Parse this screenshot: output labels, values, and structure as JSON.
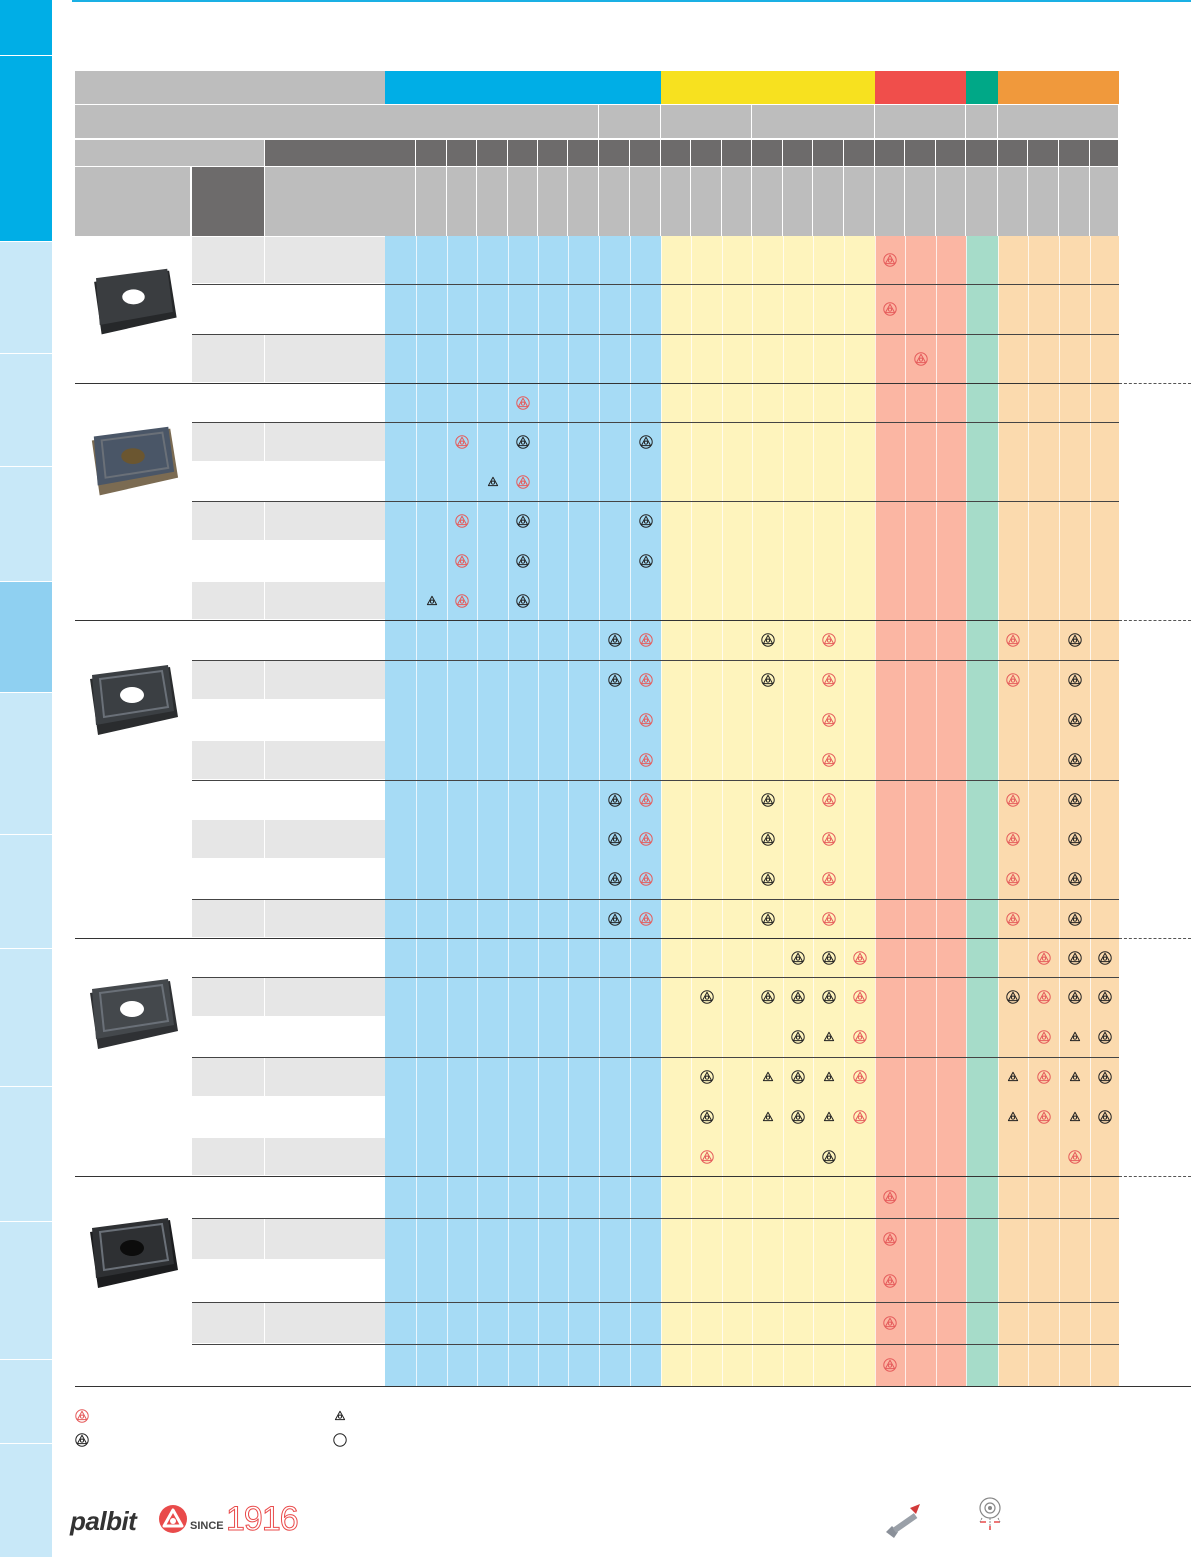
{
  "colors": {
    "p_blue": "#00aee6",
    "m_yellow": "#f7e11f",
    "k_red": "#f04e4b",
    "n_green": "#00a887",
    "s_orange": "#f0993c",
    "header_gray": "#bdbdbd",
    "header_dark": "#6d6b6b",
    "sym_red": "#e55b5b",
    "sym_black": "#222222"
  },
  "sidebar": {
    "tabs": [
      {
        "color": "#00aee6"
      },
      {
        "color": "#00aee6"
      },
      {
        "color": "#c8e8f8"
      },
      {
        "color": "#c8e8f8"
      },
      {
        "color": "#c8e8f8"
      },
      {
        "color": "#8fd0f1"
      },
      {
        "color": "#c8e8f8"
      },
      {
        "color": "#c8e8f8"
      },
      {
        "color": "#c8e8f8"
      },
      {
        "color": "#c8e8f8"
      },
      {
        "color": "#c8e8f8"
      },
      {
        "color": "#c8e8f8"
      },
      {
        "color": "#c8e8f8"
      }
    ]
  },
  "groups": [
    {
      "icon": "insert-plain-hole-icon",
      "rows": [
        "g",
        "w",
        "g"
      ]
    },
    {
      "icon": "insert-chipbreaker-coated-icon",
      "rows": [
        "w",
        "g",
        "w",
        "g",
        "w",
        "g"
      ]
    },
    {
      "icon": "insert-chipbreaker-dark-icon",
      "rows": [
        "w",
        "g",
        "w",
        "g",
        "w",
        "g",
        "w",
        "g"
      ]
    },
    {
      "icon": "insert-chipbreaker-gray-icon",
      "rows": [
        "w",
        "g",
        "w",
        "g",
        "w",
        "g"
      ]
    },
    {
      "icon": "insert-black-hole-icon",
      "rows": [
        "w",
        "g",
        "w",
        "g",
        "w"
      ]
    }
  ],
  "marks": [
    {
      "row": 0,
      "col": 16,
      "t": "r"
    },
    {
      "row": 1,
      "col": 16,
      "t": "r"
    },
    {
      "row": 2,
      "col": 17,
      "t": "r"
    },
    {
      "row": 3,
      "col": 4,
      "t": "r"
    },
    {
      "row": 4,
      "col": 2,
      "t": "r"
    },
    {
      "row": 4,
      "col": 4,
      "t": "b"
    },
    {
      "row": 4,
      "col": 8,
      "t": "b"
    },
    {
      "row": 5,
      "col": 3,
      "t": "o"
    },
    {
      "row": 5,
      "col": 4,
      "t": "r"
    },
    {
      "row": 6,
      "col": 2,
      "t": "r"
    },
    {
      "row": 6,
      "col": 4,
      "t": "b"
    },
    {
      "row": 6,
      "col": 8,
      "t": "b"
    },
    {
      "row": 7,
      "col": 2,
      "t": "r"
    },
    {
      "row": 7,
      "col": 4,
      "t": "b"
    },
    {
      "row": 7,
      "col": 8,
      "t": "b"
    },
    {
      "row": 8,
      "col": 1,
      "t": "o"
    },
    {
      "row": 8,
      "col": 2,
      "t": "r"
    },
    {
      "row": 8,
      "col": 4,
      "t": "b"
    },
    {
      "row": 9,
      "col": 7,
      "t": "b"
    },
    {
      "row": 9,
      "col": 8,
      "t": "r"
    },
    {
      "row": 9,
      "col": 12,
      "t": "b"
    },
    {
      "row": 9,
      "col": 14,
      "t": "r"
    },
    {
      "row": 9,
      "col": 20,
      "t": "r"
    },
    {
      "row": 9,
      "col": 22,
      "t": "b"
    },
    {
      "row": 10,
      "col": 7,
      "t": "b"
    },
    {
      "row": 10,
      "col": 8,
      "t": "r"
    },
    {
      "row": 10,
      "col": 12,
      "t": "b"
    },
    {
      "row": 10,
      "col": 14,
      "t": "r"
    },
    {
      "row": 10,
      "col": 20,
      "t": "r"
    },
    {
      "row": 10,
      "col": 22,
      "t": "b"
    },
    {
      "row": 11,
      "col": 8,
      "t": "r"
    },
    {
      "row": 11,
      "col": 14,
      "t": "r"
    },
    {
      "row": 11,
      "col": 22,
      "t": "b"
    },
    {
      "row": 12,
      "col": 8,
      "t": "r"
    },
    {
      "row": 12,
      "col": 14,
      "t": "r"
    },
    {
      "row": 12,
      "col": 22,
      "t": "b"
    },
    {
      "row": 13,
      "col": 7,
      "t": "b"
    },
    {
      "row": 13,
      "col": 8,
      "t": "r"
    },
    {
      "row": 13,
      "col": 12,
      "t": "b"
    },
    {
      "row": 13,
      "col": 14,
      "t": "r"
    },
    {
      "row": 13,
      "col": 20,
      "t": "r"
    },
    {
      "row": 13,
      "col": 22,
      "t": "b"
    },
    {
      "row": 14,
      "col": 7,
      "t": "b"
    },
    {
      "row": 14,
      "col": 8,
      "t": "r"
    },
    {
      "row": 14,
      "col": 12,
      "t": "b"
    },
    {
      "row": 14,
      "col": 14,
      "t": "r"
    },
    {
      "row": 14,
      "col": 20,
      "t": "r"
    },
    {
      "row": 14,
      "col": 22,
      "t": "b"
    },
    {
      "row": 15,
      "col": 7,
      "t": "b"
    },
    {
      "row": 15,
      "col": 8,
      "t": "r"
    },
    {
      "row": 15,
      "col": 12,
      "t": "b"
    },
    {
      "row": 15,
      "col": 14,
      "t": "r"
    },
    {
      "row": 15,
      "col": 20,
      "t": "r"
    },
    {
      "row": 15,
      "col": 22,
      "t": "b"
    },
    {
      "row": 16,
      "col": 7,
      "t": "b"
    },
    {
      "row": 16,
      "col": 8,
      "t": "r"
    },
    {
      "row": 16,
      "col": 12,
      "t": "b"
    },
    {
      "row": 16,
      "col": 14,
      "t": "r"
    },
    {
      "row": 16,
      "col": 20,
      "t": "r"
    },
    {
      "row": 16,
      "col": 22,
      "t": "b"
    },
    {
      "row": 17,
      "col": 13,
      "t": "b"
    },
    {
      "row": 17,
      "col": 14,
      "t": "b"
    },
    {
      "row": 17,
      "col": 15,
      "t": "r"
    },
    {
      "row": 17,
      "col": 21,
      "t": "r"
    },
    {
      "row": 17,
      "col": 22,
      "t": "b"
    },
    {
      "row": 17,
      "col": 23,
      "t": "b"
    },
    {
      "row": 18,
      "col": 10,
      "t": "b"
    },
    {
      "row": 18,
      "col": 12,
      "t": "b"
    },
    {
      "row": 18,
      "col": 13,
      "t": "b"
    },
    {
      "row": 18,
      "col": 14,
      "t": "b"
    },
    {
      "row": 18,
      "col": 15,
      "t": "r"
    },
    {
      "row": 18,
      "col": 20,
      "t": "b"
    },
    {
      "row": 18,
      "col": 21,
      "t": "r"
    },
    {
      "row": 18,
      "col": 22,
      "t": "b"
    },
    {
      "row": 18,
      "col": 23,
      "t": "b"
    },
    {
      "row": 19,
      "col": 13,
      "t": "b"
    },
    {
      "row": 19,
      "col": 14,
      "t": "o"
    },
    {
      "row": 19,
      "col": 15,
      "t": "r"
    },
    {
      "row": 19,
      "col": 21,
      "t": "r"
    },
    {
      "row": 19,
      "col": 22,
      "t": "o"
    },
    {
      "row": 19,
      "col": 23,
      "t": "b"
    },
    {
      "row": 20,
      "col": 10,
      "t": "b"
    },
    {
      "row": 20,
      "col": 12,
      "t": "o"
    },
    {
      "row": 20,
      "col": 13,
      "t": "b"
    },
    {
      "row": 20,
      "col": 14,
      "t": "o"
    },
    {
      "row": 20,
      "col": 15,
      "t": "r"
    },
    {
      "row": 20,
      "col": 20,
      "t": "o"
    },
    {
      "row": 20,
      "col": 21,
      "t": "r"
    },
    {
      "row": 20,
      "col": 22,
      "t": "o"
    },
    {
      "row": 20,
      "col": 23,
      "t": "b"
    },
    {
      "row": 21,
      "col": 10,
      "t": "b"
    },
    {
      "row": 21,
      "col": 12,
      "t": "o"
    },
    {
      "row": 21,
      "col": 13,
      "t": "b"
    },
    {
      "row": 21,
      "col": 14,
      "t": "o"
    },
    {
      "row": 21,
      "col": 15,
      "t": "r"
    },
    {
      "row": 21,
      "col": 20,
      "t": "o"
    },
    {
      "row": 21,
      "col": 21,
      "t": "r"
    },
    {
      "row": 21,
      "col": 22,
      "t": "o"
    },
    {
      "row": 21,
      "col": 23,
      "t": "b"
    },
    {
      "row": 22,
      "col": 10,
      "t": "r"
    },
    {
      "row": 22,
      "col": 14,
      "t": "b"
    },
    {
      "row": 22,
      "col": 22,
      "t": "r"
    },
    {
      "row": 23,
      "col": 16,
      "t": "r"
    },
    {
      "row": 24,
      "col": 16,
      "t": "r"
    },
    {
      "row": 25,
      "col": 16,
      "t": "r"
    },
    {
      "row": 26,
      "col": 16,
      "t": "r"
    },
    {
      "row": 27,
      "col": 16,
      "t": "r"
    }
  ],
  "legend": [
    {
      "icon": "red-grade-symbol-icon",
      "t": "r"
    },
    {
      "icon": "black-grade-symbol-icon",
      "t": "b"
    },
    {
      "icon": "outline-grade-symbol-icon",
      "t": "o"
    },
    {
      "icon": "empty-circle-symbol-icon",
      "t": "c"
    }
  ],
  "footer": {
    "brand": "palbit",
    "since": "SINCE",
    "year": "1916"
  }
}
